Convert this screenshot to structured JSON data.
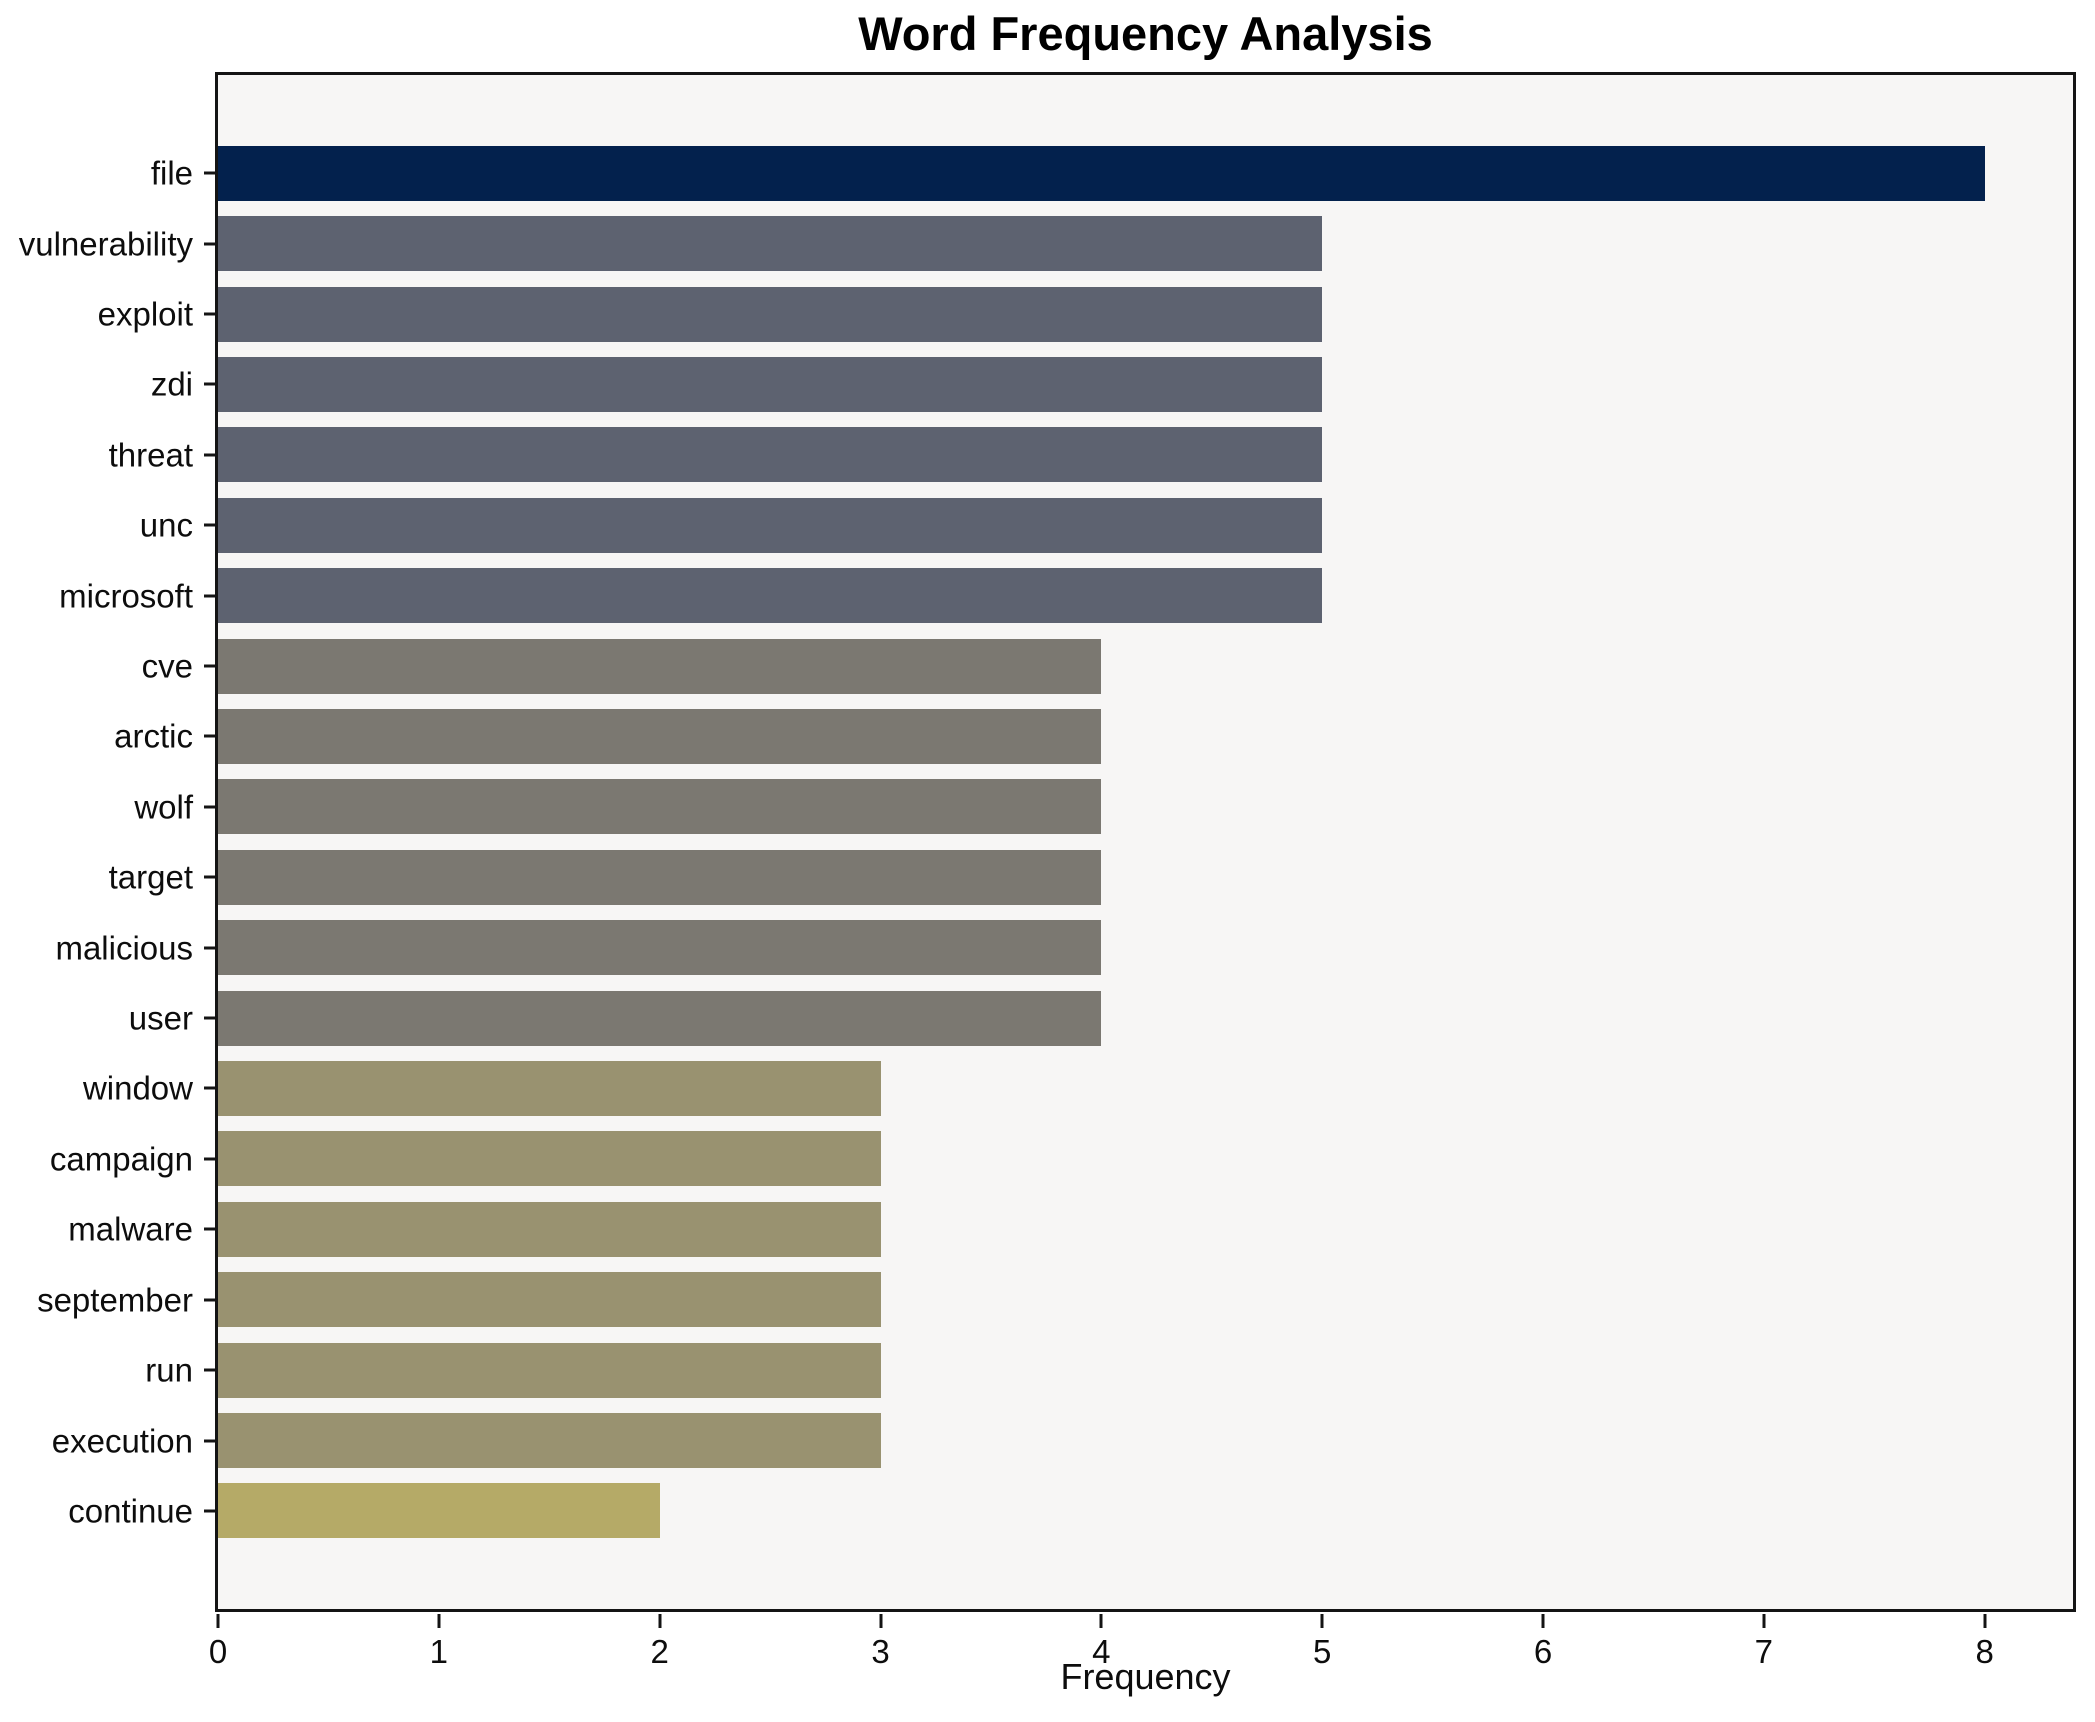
{
  "figure": {
    "title": "Word Frequency Analysis",
    "xlabel": "Frequency"
  },
  "chart_data": {
    "type": "bar",
    "orientation": "horizontal",
    "title": "Word Frequency Analysis",
    "xlabel": "Frequency",
    "ylabel": "",
    "xlim": [
      0,
      8.4
    ],
    "xticks": [
      0,
      1,
      2,
      3,
      4,
      5,
      6,
      7,
      8
    ],
    "grid": false,
    "legend": false,
    "plot_background": "#f7f6f5",
    "spine_color": "#141414",
    "categories": [
      "file",
      "vulnerability",
      "exploit",
      "zdi",
      "threat",
      "unc",
      "microsoft",
      "cve",
      "arctic",
      "wolf",
      "target",
      "malicious",
      "user",
      "window",
      "campaign",
      "malware",
      "september",
      "run",
      "execution",
      "continue"
    ],
    "values": [
      8,
      5,
      5,
      5,
      5,
      5,
      5,
      4,
      4,
      4,
      4,
      4,
      4,
      3,
      3,
      3,
      3,
      3,
      3,
      2
    ],
    "bar_colors": [
      "#03214d",
      "#5d6270",
      "#5d6270",
      "#5d6270",
      "#5d6270",
      "#5d6270",
      "#5d6270",
      "#7b7871",
      "#7b7871",
      "#7b7871",
      "#7b7871",
      "#7b7871",
      "#7b7871",
      "#999270",
      "#999270",
      "#999270",
      "#999270",
      "#999270",
      "#999270",
      "#b5aa67"
    ]
  }
}
